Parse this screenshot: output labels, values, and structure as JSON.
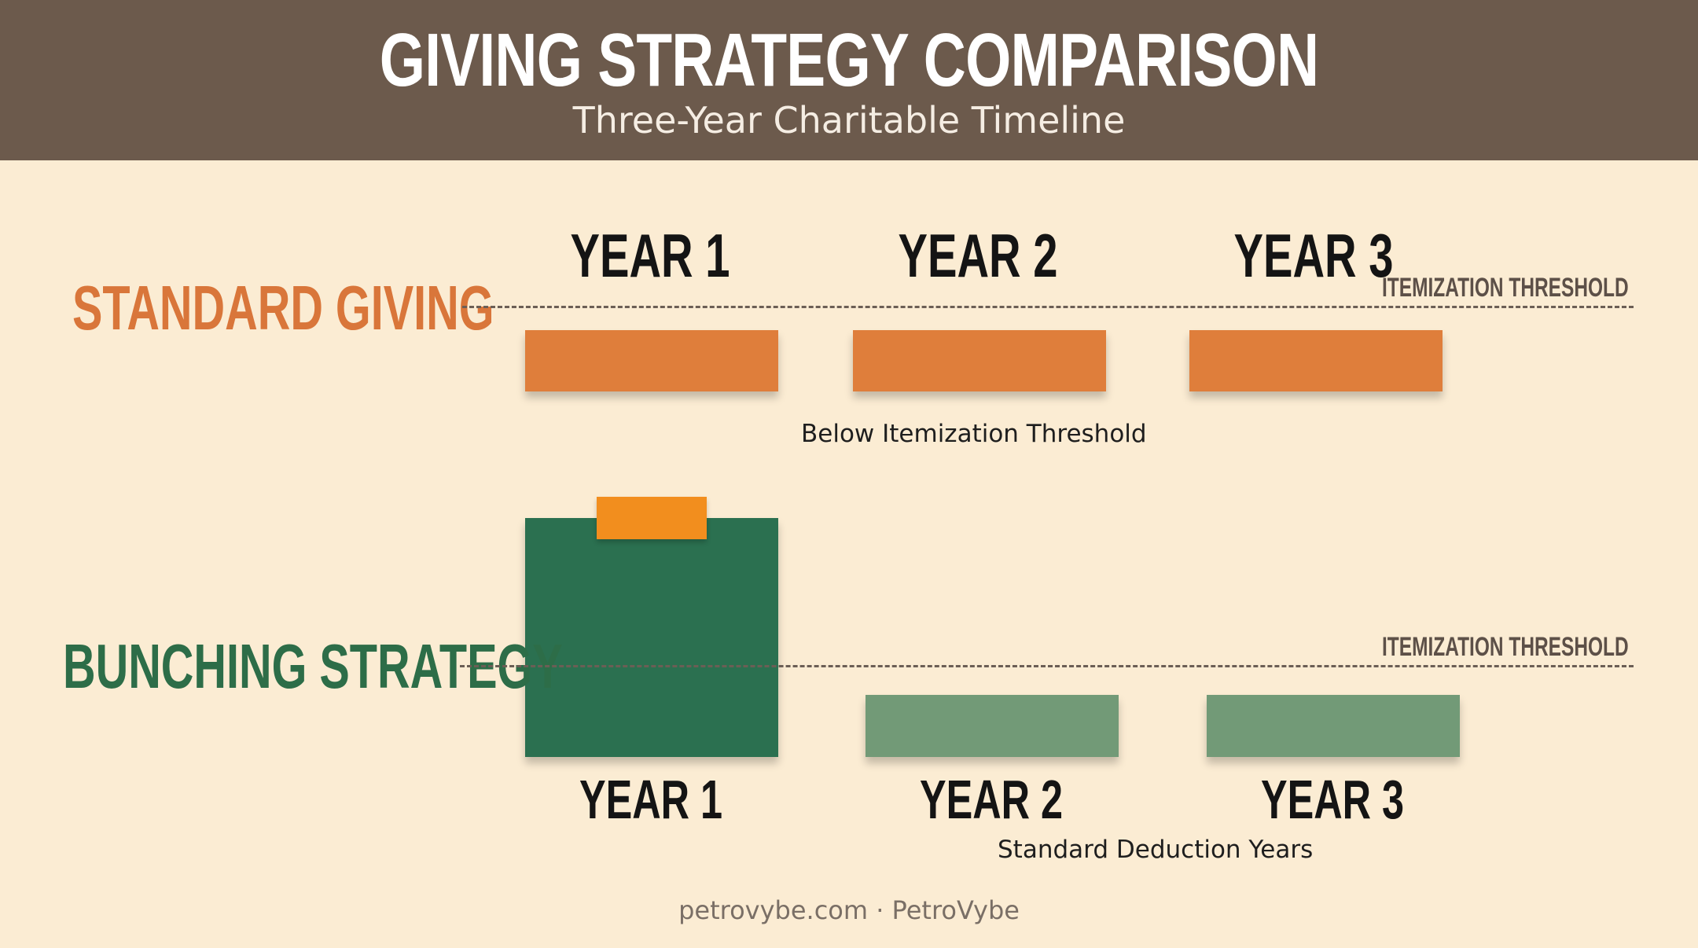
{
  "header": {
    "title": "GIVING STRATEGY COMPARISON",
    "subtitle": "Three-Year Charitable Timeline",
    "background_color": "#6c5a4c"
  },
  "standard": {
    "label": "STANDARD GIVING",
    "label_color": "#d9763a",
    "bar_color": "#df7e3b",
    "threshold_label": "ITEMIZATION THRESHOLD",
    "years": [
      "YEAR 1",
      "YEAR 2",
      "YEAR 3"
    ],
    "caption": "Below Itemization Threshold"
  },
  "bunching": {
    "label": "BUNCHING STRATEGY",
    "label_color": "#2d6d48",
    "bunched_bar_color": "#2b7050",
    "bunched_accent_color": "#f28e1e",
    "light_bar_color": "#729a77",
    "threshold_label": "ITEMIZATION THRESHOLD",
    "years": [
      "YEAR 1",
      "YEAR 2",
      "YEAR 3"
    ],
    "caption": "Standard Deduction Years"
  },
  "footer": {
    "text": "petrovybe.com · PetroVybe"
  }
}
